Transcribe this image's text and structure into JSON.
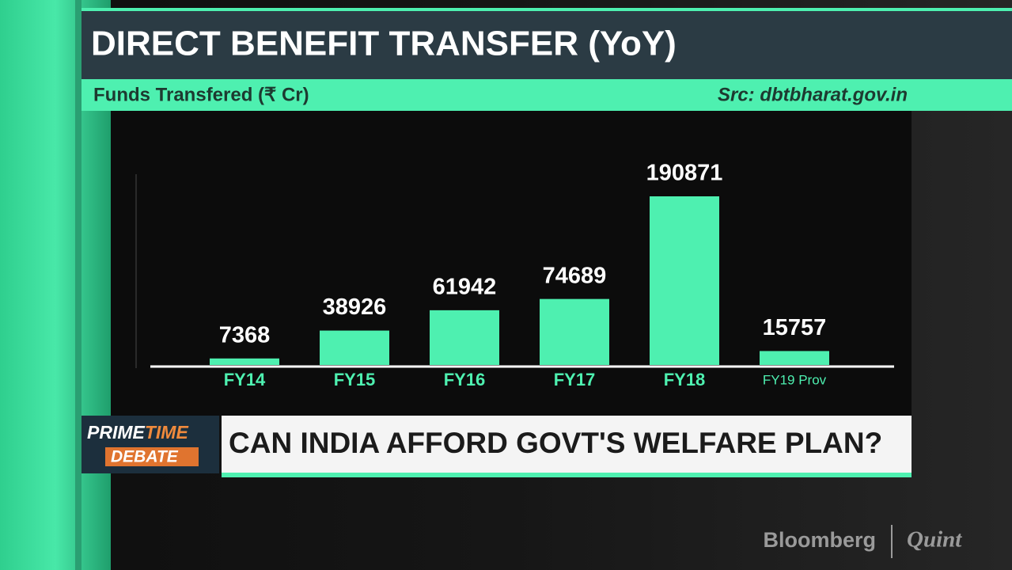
{
  "chart_data": {
    "type": "bar",
    "title": "DIRECT BENEFIT TRANSFER (YoY)",
    "subtitle": "Funds Transfered (₹ Cr)",
    "source": "Src: dbtbharat.gov.in",
    "categories": [
      "FY14",
      "FY15",
      "FY16",
      "FY17",
      "FY18",
      "FY19 Prov"
    ],
    "values": [
      7368,
      38926,
      61942,
      74689,
      190871,
      15757
    ],
    "color": "#4ef0b0"
  },
  "banner": {
    "logo_top_1": "PRIME",
    "logo_top_2": "TIME",
    "logo_bottom": "DEBATE",
    "headline": "CAN INDIA AFFORD GOVT'S WELFARE PLAN?"
  },
  "watermark": {
    "brand_1": "Bloomberg",
    "brand_2": "Quint"
  }
}
